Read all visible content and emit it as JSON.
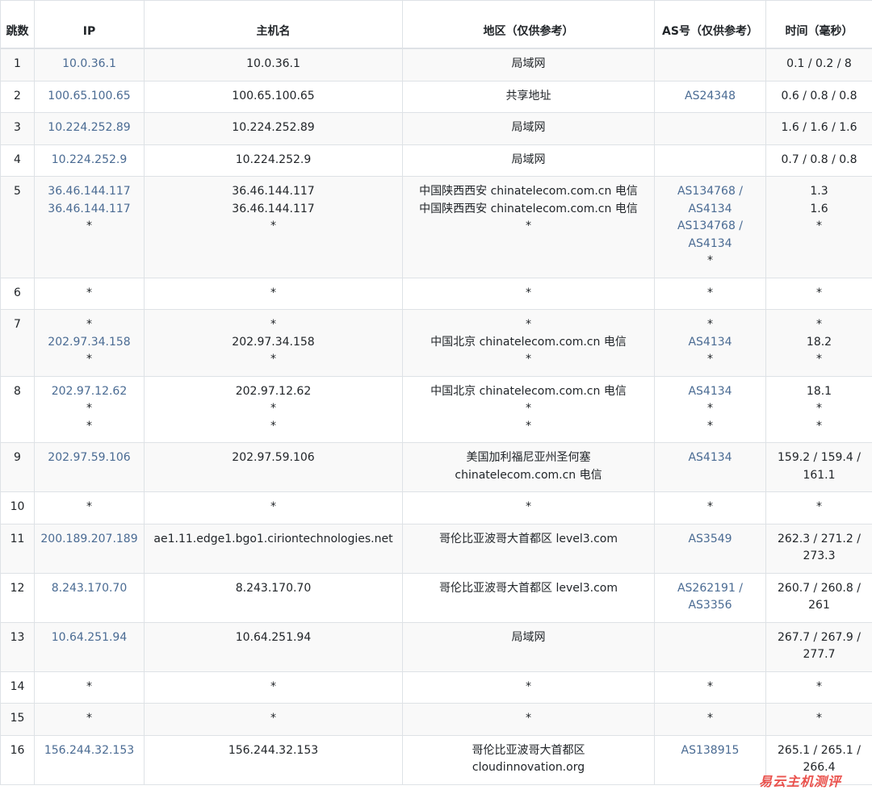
{
  "headers": [
    "跳数",
    "IP",
    "主机名",
    "地区（仅供参考）",
    "AS号（仅供参考）",
    "时间（毫秒）"
  ],
  "rows": [
    {
      "hop": "1",
      "ip": [
        "10.0.36.1"
      ],
      "host": [
        "10.0.36.1"
      ],
      "region": [
        "局域网"
      ],
      "as": [],
      "time": [
        "0.1 / 0.2 / 8"
      ]
    },
    {
      "hop": "2",
      "ip": [
        "100.65.100.65"
      ],
      "host": [
        "100.65.100.65"
      ],
      "region": [
        "共享地址"
      ],
      "as": [
        "AS24348"
      ],
      "time": [
        "0.6 / 0.8 / 0.8"
      ]
    },
    {
      "hop": "3",
      "ip": [
        "10.224.252.89"
      ],
      "host": [
        "10.224.252.89"
      ],
      "region": [
        "局域网"
      ],
      "as": [],
      "time": [
        "1.6 / 1.6 / 1.6"
      ]
    },
    {
      "hop": "4",
      "ip": [
        "10.224.252.9"
      ],
      "host": [
        "10.224.252.9"
      ],
      "region": [
        "局域网"
      ],
      "as": [],
      "time": [
        "0.7 / 0.8 / 0.8"
      ]
    },
    {
      "hop": "5",
      "ip": [
        "36.46.144.117",
        "36.46.144.117",
        "*"
      ],
      "host": [
        "36.46.144.117",
        "36.46.144.117",
        "*"
      ],
      "region": [
        "中国陕西西安 chinatelecom.com.cn 电信",
        "中国陕西西安 chinatelecom.com.cn 电信",
        "*"
      ],
      "as": [
        "AS134768 /",
        "AS4134",
        "AS134768 /",
        "AS4134",
        "*"
      ],
      "time": [
        "1.3",
        "1.6",
        "*"
      ]
    },
    {
      "hop": "6",
      "ip": [
        "*"
      ],
      "host": [
        "*"
      ],
      "region": [
        "*"
      ],
      "as": [
        "*"
      ],
      "time": [
        "*"
      ]
    },
    {
      "hop": "7",
      "ip": [
        "*",
        "202.97.34.158",
        "*"
      ],
      "host": [
        "*",
        "202.97.34.158",
        "*"
      ],
      "region": [
        "*",
        "中国北京 chinatelecom.com.cn 电信",
        "*"
      ],
      "as": [
        "*",
        "AS4134",
        "*"
      ],
      "time": [
        "*",
        "18.2",
        "*"
      ]
    },
    {
      "hop": "8",
      "ip": [
        "202.97.12.62",
        "*",
        "*"
      ],
      "host": [
        "202.97.12.62",
        "*",
        "*"
      ],
      "region": [
        "中国北京 chinatelecom.com.cn 电信",
        "*",
        "*"
      ],
      "as": [
        "AS4134",
        "*",
        "*"
      ],
      "time": [
        "18.1",
        "*",
        "*"
      ]
    },
    {
      "hop": "9",
      "ip": [
        "202.97.59.106"
      ],
      "host": [
        "202.97.59.106"
      ],
      "region": [
        "美国加利福尼亚州圣何塞",
        "chinatelecom.com.cn 电信"
      ],
      "as": [
        "AS4134"
      ],
      "time": [
        "159.2 / 159.4 /",
        "161.1"
      ]
    },
    {
      "hop": "10",
      "ip": [
        "*"
      ],
      "host": [
        "*"
      ],
      "region": [
        "*"
      ],
      "as": [
        "*"
      ],
      "time": [
        "*"
      ]
    },
    {
      "hop": "11",
      "ip": [
        "200.189.207.189"
      ],
      "host": [
        "ae1.11.edge1.bgo1.ciriontechnologies.net"
      ],
      "region": [
        "哥伦比亚波哥大首都区 level3.com"
      ],
      "as": [
        "AS3549"
      ],
      "time": [
        "262.3 / 271.2 /",
        "273.3"
      ]
    },
    {
      "hop": "12",
      "ip": [
        "8.243.170.70"
      ],
      "host": [
        "8.243.170.70"
      ],
      "region": [
        "哥伦比亚波哥大首都区 level3.com"
      ],
      "as": [
        "AS262191 /",
        "AS3356"
      ],
      "time": [
        "260.7 / 260.8 /",
        "261"
      ]
    },
    {
      "hop": "13",
      "ip": [
        "10.64.251.94"
      ],
      "host": [
        "10.64.251.94"
      ],
      "region": [
        "局域网"
      ],
      "as": [],
      "time": [
        "267.7 / 267.9 /",
        "277.7"
      ]
    },
    {
      "hop": "14",
      "ip": [
        "*"
      ],
      "host": [
        "*"
      ],
      "region": [
        "*"
      ],
      "as": [
        "*"
      ],
      "time": [
        "*"
      ]
    },
    {
      "hop": "15",
      "ip": [
        "*"
      ],
      "host": [
        "*"
      ],
      "region": [
        "*"
      ],
      "as": [
        "*"
      ],
      "time": [
        "*"
      ]
    },
    {
      "hop": "16",
      "ip": [
        "156.244.32.153"
      ],
      "host": [
        "156.244.32.153"
      ],
      "region": [
        "哥伦比亚波哥大首都区",
        "cloudinnovation.org"
      ],
      "as": [
        "AS138915"
      ],
      "time": [
        "265.1 / 265.1 /",
        "266.4"
      ]
    }
  ],
  "watermark": "易云主机测评",
  "colors": {
    "link": "#4a6b93",
    "watermark": "#e8403a",
    "stripe": "#f9f9f9"
  }
}
